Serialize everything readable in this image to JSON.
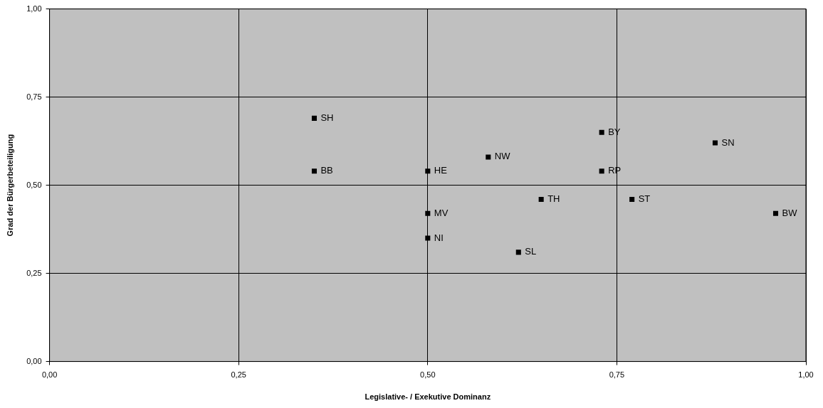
{
  "chart_data": {
    "type": "scatter",
    "xlabel": "Legislative- / Exekutive Dominanz",
    "ylabel": "Grad der Bürgerbeteiligung",
    "x": [
      0.35,
      0.35,
      0.5,
      0.5,
      0.5,
      0.58,
      0.62,
      0.65,
      0.73,
      0.73,
      0.77,
      0.88,
      0.96
    ],
    "series": [
      {
        "color": "#000000",
        "values": [
          0.69,
          0.54,
          0.54,
          0.42,
          0.35,
          0.58,
          0.31,
          0.46,
          0.65,
          0.54,
          0.46,
          0.62,
          0.42
        ]
      }
    ],
    "annotations": [
      {
        "text": "SH",
        "x": 0.35,
        "y": 0.69
      },
      {
        "text": "BB",
        "x": 0.35,
        "y": 0.54
      },
      {
        "text": "HE",
        "x": 0.5,
        "y": 0.54
      },
      {
        "text": "MV",
        "x": 0.5,
        "y": 0.42
      },
      {
        "text": "NI",
        "x": 0.5,
        "y": 0.35
      },
      {
        "text": "NW",
        "x": 0.58,
        "y": 0.58
      },
      {
        "text": "SL",
        "x": 0.62,
        "y": 0.31
      },
      {
        "text": "TH",
        "x": 0.65,
        "y": 0.46
      },
      {
        "text": "BY",
        "x": 0.73,
        "y": 0.65
      },
      {
        "text": "RP",
        "x": 0.73,
        "y": 0.54
      },
      {
        "text": "ST",
        "x": 0.77,
        "y": 0.46
      },
      {
        "text": "SN",
        "x": 0.88,
        "y": 0.62
      },
      {
        "text": "BW",
        "x": 0.96,
        "y": 0.42
      }
    ],
    "xlim": [
      0,
      1
    ],
    "ylim": [
      0,
      1
    ],
    "xticks": [
      {
        "value": 0,
        "label": "0,00"
      },
      {
        "value": 0.25,
        "label": "0,25"
      },
      {
        "value": 0.5,
        "label": "0,50"
      },
      {
        "value": 0.75,
        "label": "0,75"
      },
      {
        "value": 1,
        "label": "1,00"
      }
    ],
    "yticks": [
      {
        "value": 0,
        "label": "0,00"
      },
      {
        "value": 0.25,
        "label": "0,25"
      },
      {
        "value": 0.5,
        "label": "0,50"
      },
      {
        "value": 0.75,
        "label": "0,75"
      },
      {
        "value": 1,
        "label": "1,00"
      }
    ],
    "grid": true,
    "legend": false,
    "marker": "square"
  }
}
